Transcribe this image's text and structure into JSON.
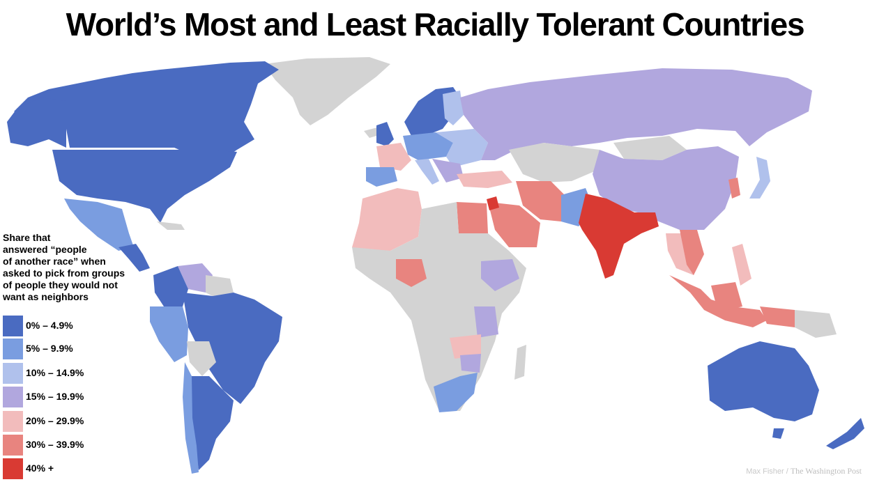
{
  "title": "World’s Most and Least Racially Tolerant Countries",
  "legend": {
    "heading": "Share that\nanswered “people\nof another race” when\nasked to pick from groups\nof people they would not\nwant as neighbors",
    "classes": [
      {
        "label": "0% – 4.9%",
        "color": "#4a6bc1"
      },
      {
        "label": "5% – 9.9%",
        "color": "#7a9de0"
      },
      {
        "label": "10% – 14.9%",
        "color": "#b0c1ec"
      },
      {
        "label": "15% – 19.9%",
        "color": "#b1a7de"
      },
      {
        "label": "20% – 29.9%",
        "color": "#f2bcbc"
      },
      {
        "label": "30% – 39.9%",
        "color": "#e8847f"
      },
      {
        "label": "40% +",
        "color": "#d93a33"
      }
    ],
    "no_data_color": "#d3d3d3"
  },
  "credit": {
    "author": "Max Fisher /",
    "publication": "The Washington Post"
  }
}
